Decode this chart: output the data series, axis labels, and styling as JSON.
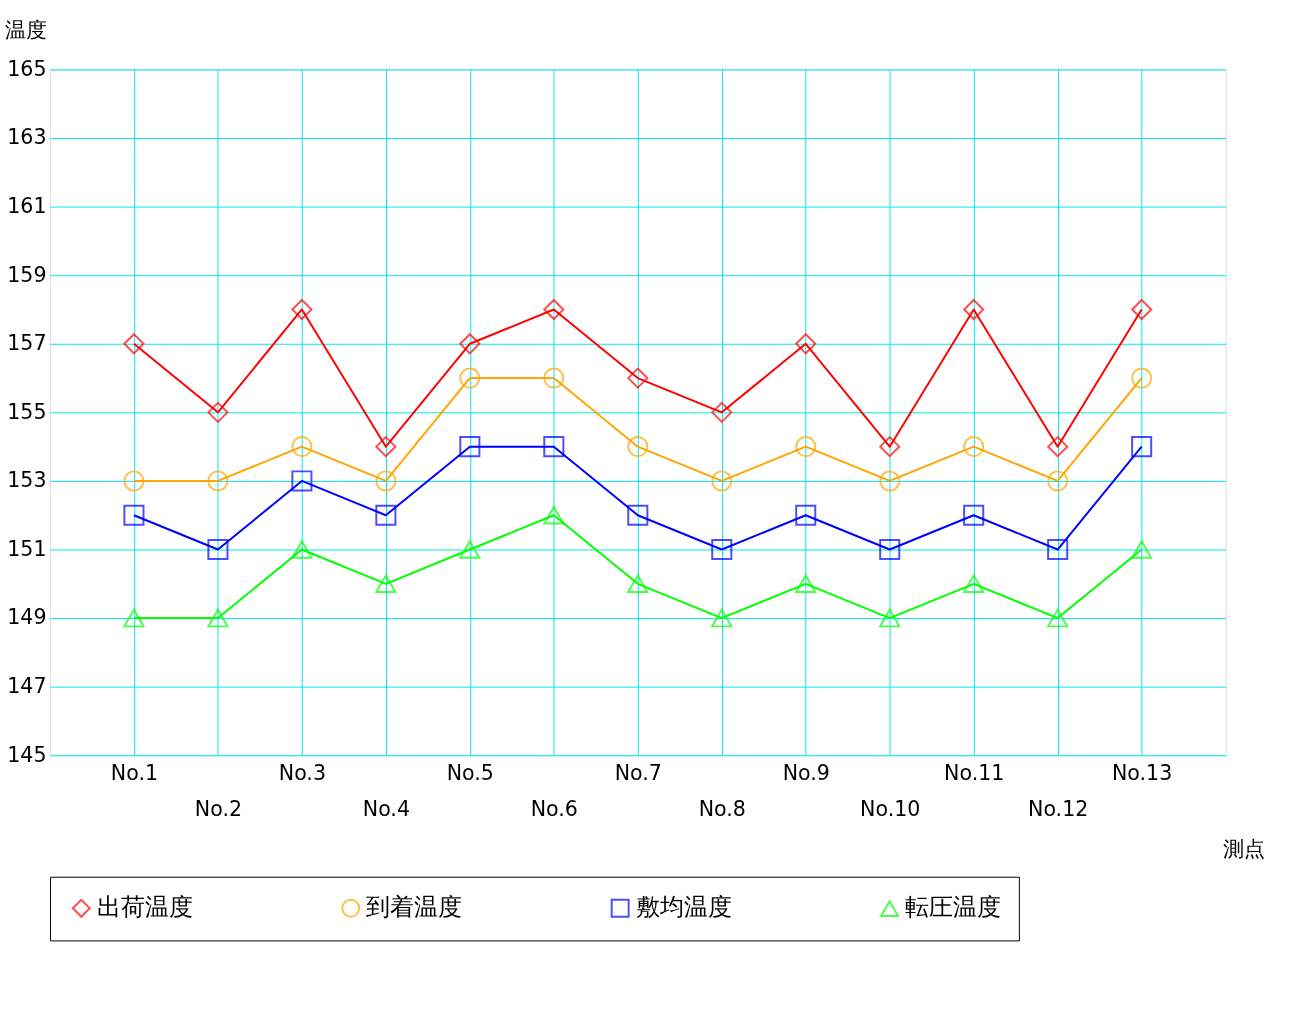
{
  "chart_data": {
    "type": "line",
    "xlabel": "測点",
    "ylabel": "温度",
    "categories": [
      "No.1",
      "No.2",
      "No.3",
      "No.4",
      "No.5",
      "No.6",
      "No.7",
      "No.8",
      "No.9",
      "No.10",
      "No.11",
      "No.12",
      "No.13"
    ],
    "series": [
      {
        "name": "出荷温度",
        "color": "#ff0000",
        "marker": "diamond",
        "values": [
          157,
          155,
          158,
          154,
          157,
          158,
          156,
          155,
          157,
          154,
          158,
          154,
          158
        ]
      },
      {
        "name": "到着温度",
        "color": "#ffa500",
        "marker": "circle",
        "values": [
          153,
          153,
          154,
          153,
          156,
          156,
          154,
          153,
          154,
          153,
          154,
          153,
          156
        ]
      },
      {
        "name": "敷均温度",
        "color": "#0000ff",
        "marker": "square",
        "values": [
          152,
          151,
          153,
          152,
          154,
          154,
          152,
          151,
          152,
          151,
          152,
          151,
          154
        ]
      },
      {
        "name": "転圧温度",
        "color": "#00ff00",
        "marker": "triangle",
        "values": [
          149,
          149,
          151,
          150,
          151,
          152,
          150,
          149,
          150,
          149,
          150,
          149,
          151
        ]
      }
    ],
    "ylim": [
      145,
      165
    ],
    "yticks": [
      145,
      147,
      149,
      151,
      153,
      155,
      157,
      159,
      161,
      163,
      165
    ],
    "grid": true,
    "legend": "bottom",
    "line_style": "solid"
  }
}
